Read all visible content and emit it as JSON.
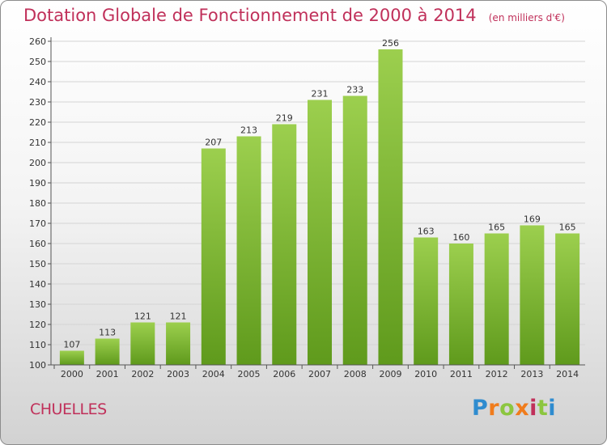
{
  "header": {
    "title": "Dotation Globale de Fonctionnement de 2000 à 2014",
    "unit": "(en milliers d'€)"
  },
  "footer": {
    "commune": "CHUELLES",
    "logo_text": "Proxiti",
    "logo_colors": [
      "#2f8ccf",
      "#f07c1c",
      "#8cc63f",
      "#f07c1c",
      "#c0305a",
      "#8cc63f",
      "#2f8ccf"
    ]
  },
  "colors": {
    "title": "#c0305a",
    "bar_top": "#9ccf4e",
    "bar_bottom": "#5f9a1c",
    "grid": "#d4d4d4",
    "axis": "#555555"
  },
  "chart_data": {
    "type": "bar",
    "categories": [
      "2000",
      "2001",
      "2002",
      "2003",
      "2004",
      "2005",
      "2006",
      "2007",
      "2008",
      "2009",
      "2010",
      "2011",
      "2012",
      "2013",
      "2014"
    ],
    "values": [
      107,
      113,
      121,
      121,
      207,
      213,
      219,
      231,
      233,
      256,
      163,
      160,
      165,
      169,
      165
    ],
    "title": "Dotation Globale de Fonctionnement de 2000 à 2014",
    "subtitle": "(en milliers d'€)",
    "xlabel": "",
    "ylabel": "",
    "ylim": [
      100,
      260
    ],
    "yticks": [
      100,
      110,
      120,
      130,
      140,
      150,
      160,
      170,
      180,
      190,
      200,
      210,
      220,
      230,
      240,
      250,
      260
    ],
    "grid": true,
    "data_labels": true
  }
}
